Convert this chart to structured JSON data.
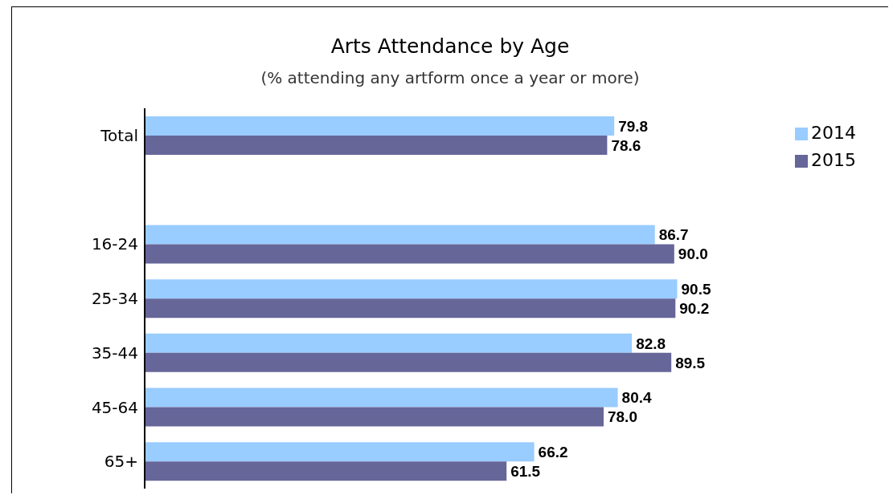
{
  "chart_data": {
    "type": "bar",
    "orientation": "horizontal",
    "title": "Arts Attendance by Age",
    "subtitle": "(% attending any artform once a year or more)",
    "categories": [
      "Total",
      null,
      "16-24",
      "25-34",
      "35-44",
      "45-64",
      "65+"
    ],
    "series": [
      {
        "name": "2014",
        "color": "#99ccff",
        "values": [
          79.8,
          null,
          86.7,
          90.5,
          82.8,
          80.4,
          66.2
        ],
        "value_labels": [
          "79.8",
          null,
          "86.7",
          "90.5",
          "82.8",
          "80.4",
          "66.2"
        ]
      },
      {
        "name": "2015",
        "color": "#666699",
        "values": [
          78.6,
          null,
          90,
          90.2,
          89.5,
          78,
          61.5
        ],
        "value_labels": [
          "78.6",
          null,
          "90.0",
          "90.2",
          "89.5",
          "78.0",
          "61.5"
        ]
      }
    ],
    "legend": "top right",
    "grid": false
  }
}
